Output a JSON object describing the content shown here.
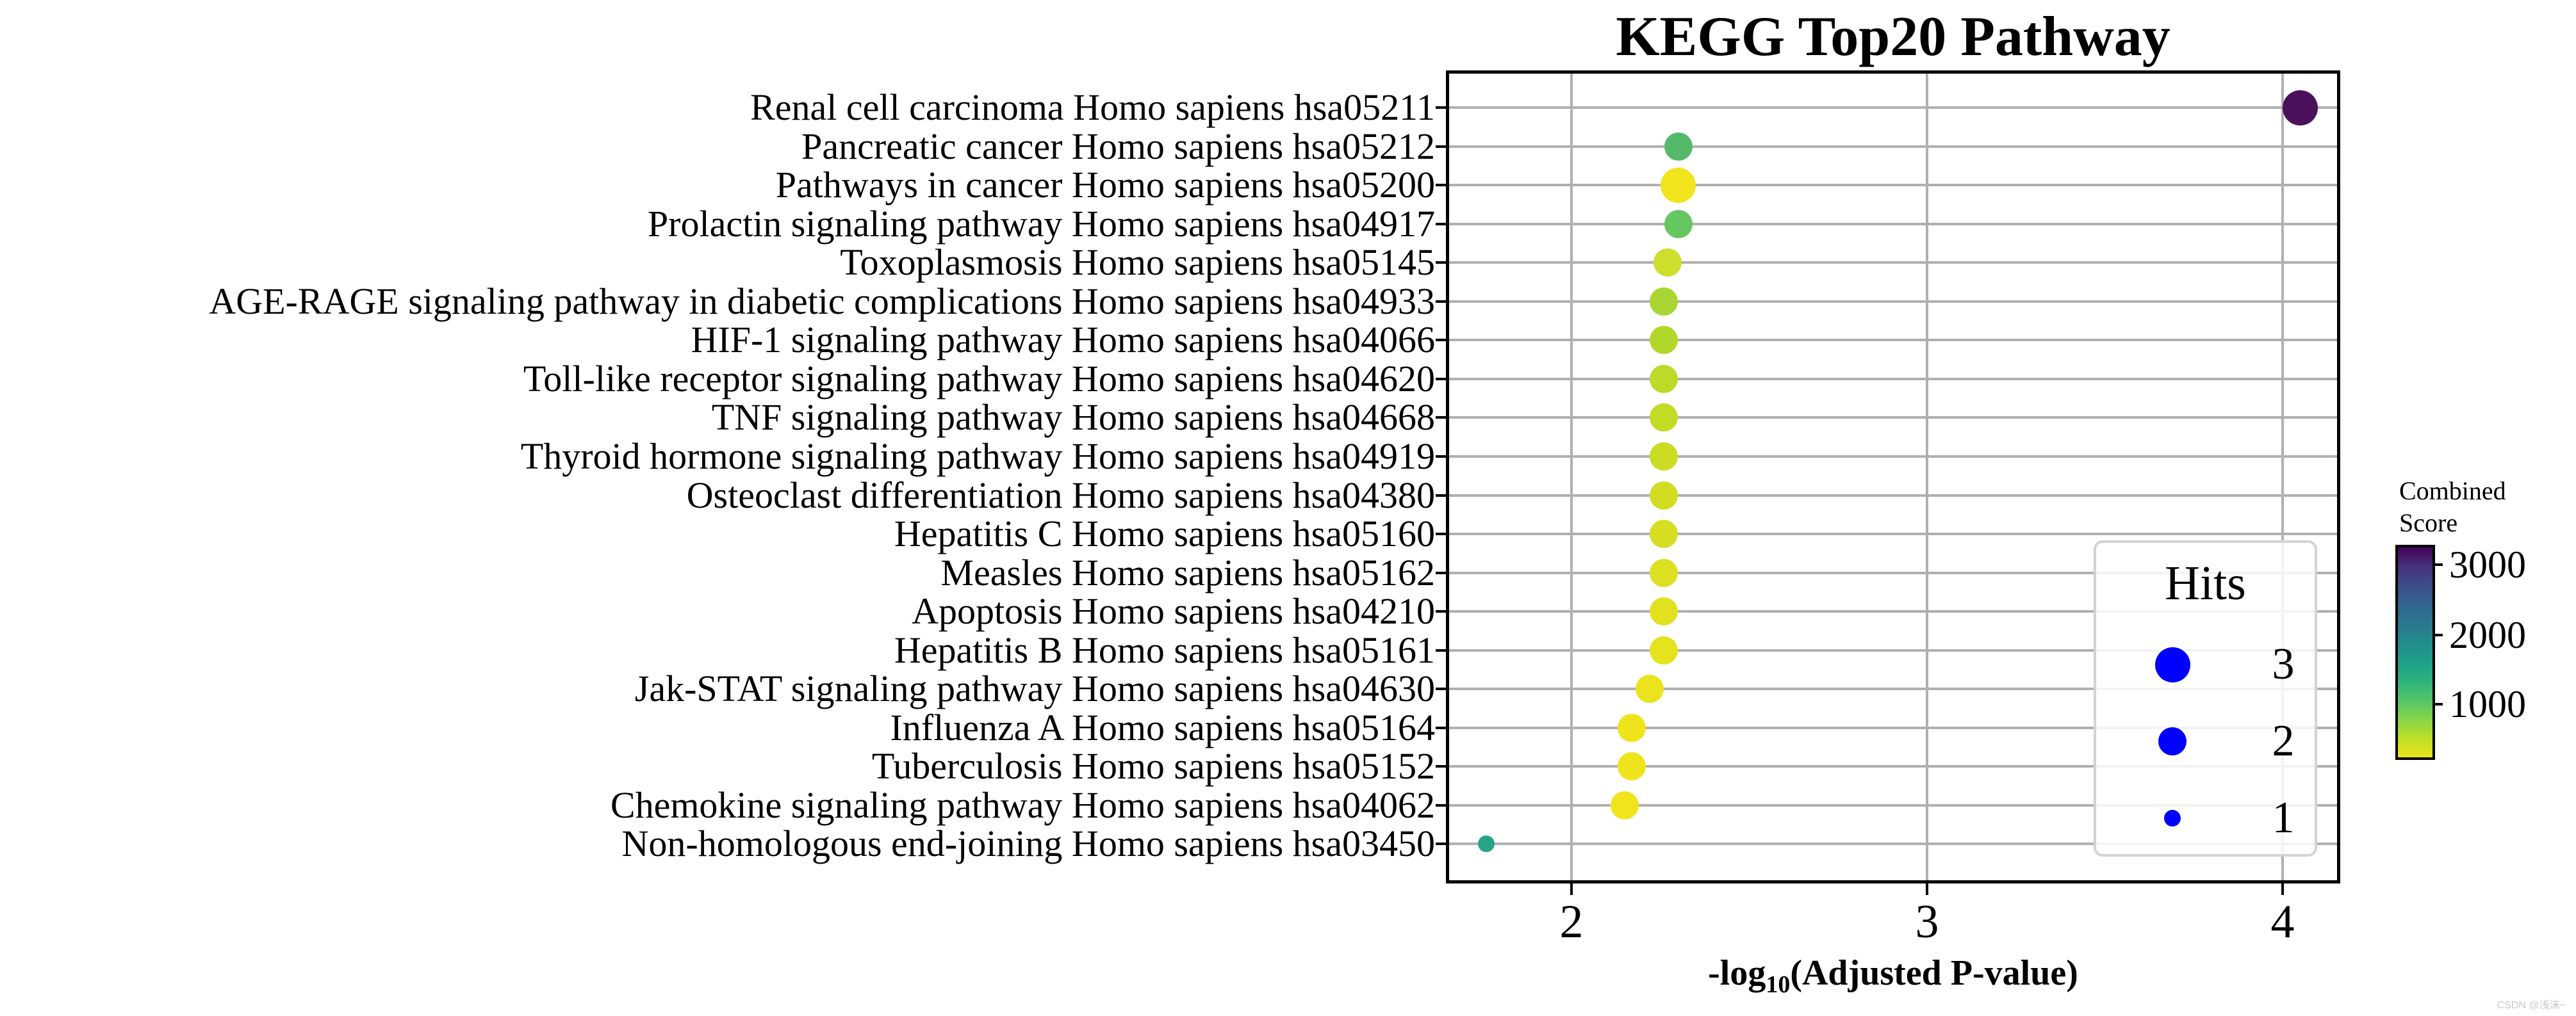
{
  "title": "KEGG Top20 Pathway",
  "watermark": "CSDN @浅沫~",
  "chart_data": {
    "type": "scatter",
    "title": "KEGG Top20 Pathway",
    "xlabel": "-log10(Adjusted P-value)",
    "xlabel_rich": {
      "prefix": "-log",
      "sub": "10",
      "suffix": "(Adjusted P-value)"
    },
    "x_ticks": [
      2,
      3,
      4
    ],
    "xlim": [
      1.65,
      4.16
    ],
    "grid": true,
    "points": [
      {
        "pathway": "Renal cell carcinoma Homo sapiens hsa05211",
        "x": 4.05,
        "hits": 3,
        "color": "#4a1059"
      },
      {
        "pathway": "Pancreatic cancer Homo sapiens hsa05212",
        "x": 2.3,
        "hits": 2,
        "color": "#54ba6a"
      },
      {
        "pathway": "Pathways in cancer Homo sapiens hsa05200",
        "x": 2.3,
        "hits": 3,
        "color": "#f2e41d"
      },
      {
        "pathway": "Prolactin signaling pathway Homo sapiens hsa04917",
        "x": 2.3,
        "hits": 2,
        "color": "#66c662"
      },
      {
        "pathway": "Toxoplasmosis Homo sapiens hsa05145",
        "x": 2.27,
        "hits": 2,
        "color": "#cede2c"
      },
      {
        "pathway": "AGE-RAGE signaling pathway in diabetic complications Homo sapiens hsa04933",
        "x": 2.26,
        "hits": 2,
        "color": "#a8d531"
      },
      {
        "pathway": "HIF-1 signaling pathway Homo sapiens hsa04066",
        "x": 2.26,
        "hits": 2,
        "color": "#b2d72b"
      },
      {
        "pathway": "Toll-like receptor signaling pathway Homo sapiens hsa04620",
        "x": 2.26,
        "hits": 2,
        "color": "#bcda27"
      },
      {
        "pathway": "TNF signaling pathway Homo sapiens hsa04668",
        "x": 2.26,
        "hits": 2,
        "color": "#c3db25"
      },
      {
        "pathway": "Thyroid hormone signaling pathway Homo sapiens hsa04919",
        "x": 2.26,
        "hits": 2,
        "color": "#cadc23"
      },
      {
        "pathway": "Osteoclast differentiation Homo sapiens hsa04380",
        "x": 2.26,
        "hits": 2,
        "color": "#d0dd22"
      },
      {
        "pathway": "Hepatitis C Homo sapiens hsa05160",
        "x": 2.26,
        "hits": 2,
        "color": "#d6de21"
      },
      {
        "pathway": "Measles Homo sapiens hsa05162",
        "x": 2.26,
        "hits": 2,
        "color": "#dde020"
      },
      {
        "pathway": "Apoptosis Homo sapiens hsa04210",
        "x": 2.26,
        "hits": 2,
        "color": "#e1e11f"
      },
      {
        "pathway": "Hepatitis B Homo sapiens hsa05161",
        "x": 2.26,
        "hits": 2,
        "color": "#e5e21e"
      },
      {
        "pathway": "Jak-STAT signaling pathway Homo sapiens hsa04630",
        "x": 2.22,
        "hits": 2,
        "color": "#eae31d"
      },
      {
        "pathway": "Influenza A Homo sapiens hsa05164",
        "x": 2.17,
        "hits": 2,
        "color": "#efe41c"
      },
      {
        "pathway": "Tuberculosis Homo sapiens hsa05152",
        "x": 2.17,
        "hits": 2,
        "color": "#efe41c"
      },
      {
        "pathway": "Chemokine signaling pathway Homo sapiens hsa04062",
        "x": 2.15,
        "hits": 2,
        "color": "#f1e41c"
      },
      {
        "pathway": "Non-homologous end-joining Homo sapiens hsa03450",
        "x": 1.76,
        "hits": 1,
        "color": "#27a585"
      }
    ],
    "size_legend": {
      "title": "Hits",
      "entries": [
        "3",
        "2",
        "1"
      ],
      "entry_hits": [
        3,
        2,
        1
      ],
      "marker_color": "#0000ff"
    },
    "colorbar": {
      "title_line1": "Combined",
      "title_line2": "Score",
      "tick_labels": [
        "3000",
        "2000",
        "1000"
      ],
      "gradient_stops": [
        "#440154",
        "#46327e",
        "#3e4c8a",
        "#32648e",
        "#2a788e",
        "#228c8d",
        "#1fa088",
        "#2db27d",
        "#53c568",
        "#86d549",
        "#bddf26",
        "#e8e419"
      ]
    },
    "legend_position": "inside-right",
    "colors": {
      "axis": "#000000",
      "grid": "#b0b0b0"
    }
  }
}
